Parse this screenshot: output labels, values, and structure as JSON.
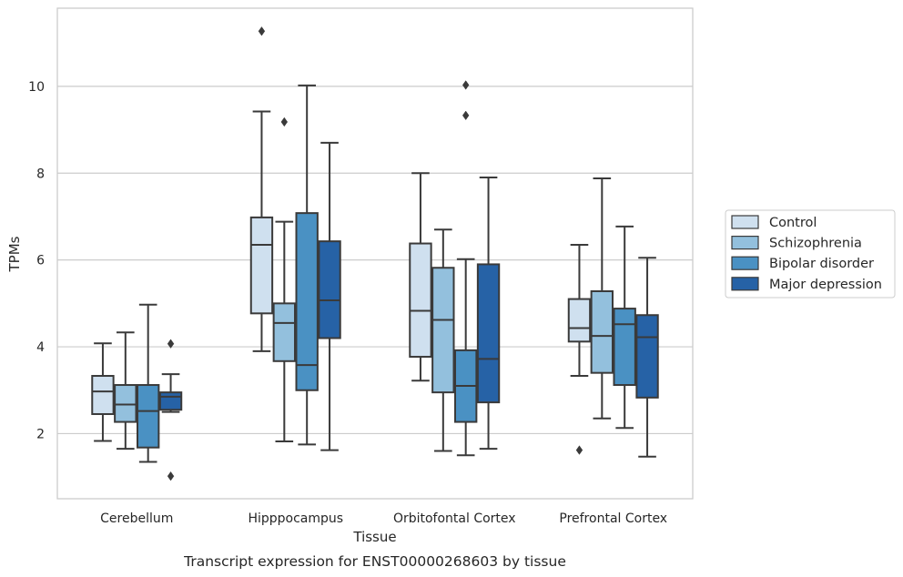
{
  "chart_data": {
    "type": "box",
    "title": "Transcript expression for ENST00000268603 by tissue",
    "xlabel": "Tissue",
    "ylabel": "TPMs",
    "ylim": [
      0.5,
      11.8
    ],
    "yticks": [
      "2",
      "4",
      "6",
      "8",
      "10"
    ],
    "categories": [
      "Cerebellum",
      "Hipppocampus",
      "Orbitofontal Cortex",
      "Prefrontal Cortex"
    ],
    "grid": "horizontal",
    "legend_position": "right",
    "colors": [
      "#cfe0ef",
      "#93c0dd",
      "#4a91c3",
      "#2662a6"
    ],
    "series": [
      {
        "name": "Control",
        "boxes": [
          {
            "whisker_low": 1.83,
            "q1": 2.45,
            "median": 2.97,
            "q3": 3.33,
            "whisker_high": 4.08,
            "outliers": []
          },
          {
            "whisker_low": 3.9,
            "q1": 4.77,
            "median": 6.35,
            "q3": 6.98,
            "whisker_high": 9.42,
            "outliers": [
              11.27
            ]
          },
          {
            "whisker_low": 3.22,
            "q1": 3.77,
            "median": 4.83,
            "q3": 6.38,
            "whisker_high": 8.0,
            "outliers": []
          },
          {
            "whisker_low": 3.33,
            "q1": 4.12,
            "median": 4.43,
            "q3": 5.1,
            "whisker_high": 6.35,
            "outliers": [
              1.62
            ]
          }
        ]
      },
      {
        "name": "Schizophrenia",
        "boxes": [
          {
            "whisker_low": 1.65,
            "q1": 2.27,
            "median": 2.67,
            "q3": 3.12,
            "whisker_high": 4.33,
            "outliers": []
          },
          {
            "whisker_low": 1.82,
            "q1": 3.67,
            "median": 4.55,
            "q3": 5.0,
            "whisker_high": 6.88,
            "outliers": [
              9.18
            ]
          },
          {
            "whisker_low": 1.6,
            "q1": 2.95,
            "median": 4.62,
            "q3": 5.82,
            "whisker_high": 6.7,
            "outliers": []
          },
          {
            "whisker_low": 2.35,
            "q1": 3.4,
            "median": 4.25,
            "q3": 5.28,
            "whisker_high": 7.88,
            "outliers": []
          }
        ]
      },
      {
        "name": "Bipolar disorder",
        "boxes": [
          {
            "whisker_low": 1.35,
            "q1": 1.68,
            "median": 2.52,
            "q3": 3.12,
            "whisker_high": 4.97,
            "outliers": []
          },
          {
            "whisker_low": 1.75,
            "q1": 3.0,
            "median": 3.58,
            "q3": 7.08,
            "whisker_high": 10.02,
            "outliers": []
          },
          {
            "whisker_low": 1.5,
            "q1": 2.27,
            "median": 3.1,
            "q3": 3.92,
            "whisker_high": 6.02,
            "outliers": [
              9.33,
              10.03
            ]
          },
          {
            "whisker_low": 2.13,
            "q1": 3.12,
            "median": 4.52,
            "q3": 4.88,
            "whisker_high": 6.77,
            "outliers": []
          }
        ]
      },
      {
        "name": "Major depression",
        "boxes": [
          {
            "whisker_low": 2.5,
            "q1": 2.55,
            "median": 2.85,
            "q3": 2.95,
            "whisker_high": 3.37,
            "outliers": [
              1.02,
              4.07
            ]
          },
          {
            "whisker_low": 1.62,
            "q1": 4.2,
            "median": 5.07,
            "q3": 6.43,
            "whisker_high": 8.7,
            "outliers": []
          },
          {
            "whisker_low": 1.65,
            "q1": 2.72,
            "median": 3.72,
            "q3": 5.9,
            "whisker_high": 7.9,
            "outliers": []
          },
          {
            "whisker_low": 1.47,
            "q1": 2.83,
            "median": 4.22,
            "q3": 4.73,
            "whisker_high": 6.05,
            "outliers": []
          }
        ]
      }
    ]
  }
}
